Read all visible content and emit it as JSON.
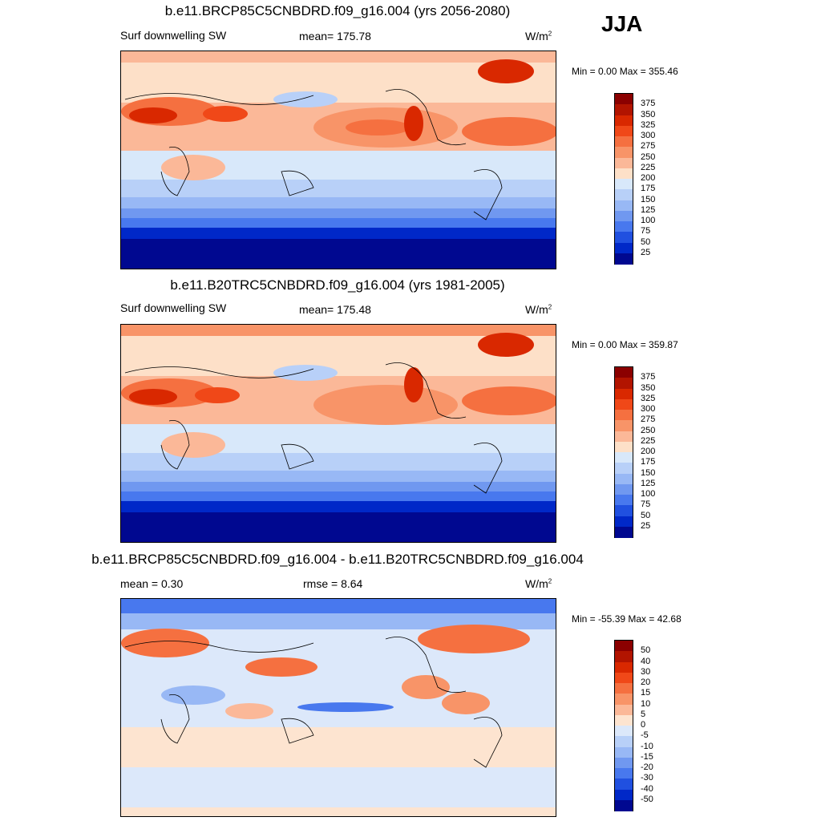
{
  "season": "JJA",
  "panels": [
    {
      "id": "future",
      "title": "b.e11.BRCP85C5CNBDRD.f09_g16.004 (yrs 2056-2080)",
      "variable": "Surf downwelling SW",
      "center_stat": "mean= 175.78",
      "units": "W/m",
      "units_sup": "2",
      "minmax": "Min =   0.00 Max = 355.46",
      "cbar_labels": [
        "375",
        "350",
        "325",
        "300",
        "275",
        "250",
        "225",
        "200",
        "175",
        "150",
        "125",
        "100",
        "75",
        "50",
        "25"
      ],
      "cbar_colors": [
        "#8b0000",
        "#b21400",
        "#d92800",
        "#f04818",
        "#f57040",
        "#f89468",
        "#fbb898",
        "#fde0c8",
        "#d8e8fa",
        "#b8d0f8",
        "#98b8f5",
        "#7098f0",
        "#4878ee",
        "#2050e0",
        "#0028c8",
        "#000890"
      ]
    },
    {
      "id": "historical",
      "title": "b.e11.B20TRC5CNBDRD.f09_g16.004 (yrs 1981-2005)",
      "variable": "Surf downwelling SW",
      "center_stat": "mean= 175.48",
      "units": "W/m",
      "units_sup": "2",
      "minmax": "Min =   0.00 Max = 359.87",
      "cbar_labels": [
        "375",
        "350",
        "325",
        "300",
        "275",
        "250",
        "225",
        "200",
        "175",
        "150",
        "125",
        "100",
        "75",
        "50",
        "25"
      ],
      "cbar_colors": [
        "#8b0000",
        "#b21400",
        "#d92800",
        "#f04818",
        "#f57040",
        "#f89468",
        "#fbb898",
        "#fde0c8",
        "#d8e8fa",
        "#b8d0f8",
        "#98b8f5",
        "#7098f0",
        "#4878ee",
        "#2050e0",
        "#0028c8",
        "#000890"
      ]
    },
    {
      "id": "difference",
      "title": "b.e11.BRCP85C5CNBDRD.f09_g16.004 - b.e11.B20TRC5CNBDRD.f09_g16.004",
      "left_stat": "mean =   0.30",
      "center_stat": "rmse =   8.64",
      "units": "W/m",
      "units_sup": "2",
      "minmax": "Min = -55.39 Max =  42.68",
      "cbar_labels": [
        "50",
        "40",
        "30",
        "20",
        "15",
        "10",
        "5",
        "0",
        "-5",
        "-10",
        "-15",
        "-20",
        "-30",
        "-40",
        "-50"
      ],
      "cbar_colors": [
        "#8b0000",
        "#b21400",
        "#d92800",
        "#f04818",
        "#f57040",
        "#f89468",
        "#fbb898",
        "#fde4d0",
        "#dce8fa",
        "#b8d0f8",
        "#98b8f5",
        "#7098f0",
        "#4878ee",
        "#2050e0",
        "#0028c8",
        "#000890"
      ]
    }
  ]
}
